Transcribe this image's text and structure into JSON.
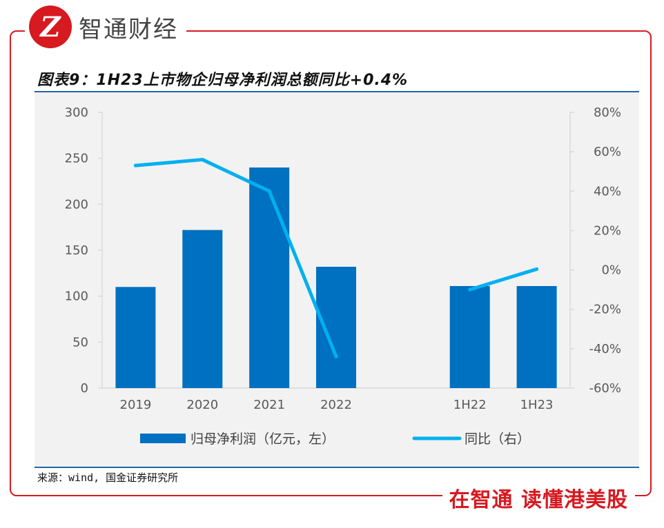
{
  "brand": {
    "logo_text": "智通财经",
    "logo_glyph": "Z",
    "slogan": "在智通 读懂港美股",
    "brand_color": "#d71920"
  },
  "figure": {
    "title": "图表9：1H23上市物企归母净利润总额同比+0.4%",
    "source": "来源：wind, 国金证券研究所"
  },
  "chart_data": {
    "type": "bar",
    "categories": [
      "2019",
      "2020",
      "2021",
      "2022",
      "",
      "1H22",
      "1H23"
    ],
    "series": [
      {
        "name": "归母净利润（亿元，左）",
        "type": "bar",
        "axis": "left",
        "color": "#0070c0",
        "values": [
          110,
          172,
          240,
          132,
          null,
          111,
          111
        ]
      },
      {
        "name": "同比（右）",
        "type": "line",
        "axis": "right",
        "color": "#00b0f0",
        "values": [
          53,
          56,
          40,
          -44,
          null,
          -10,
          0.4
        ]
      }
    ],
    "y_left": {
      "min": 0,
      "max": 300,
      "ticks": [
        "0",
        "50",
        "100",
        "150",
        "200",
        "250",
        "300"
      ]
    },
    "y_right": {
      "min": -60,
      "max": 80,
      "ticks": [
        "-60%",
        "-40%",
        "-20%",
        "0%",
        "20%",
        "40%",
        "60%",
        "80%"
      ]
    },
    "grid": false,
    "legend_position": "bottom"
  }
}
